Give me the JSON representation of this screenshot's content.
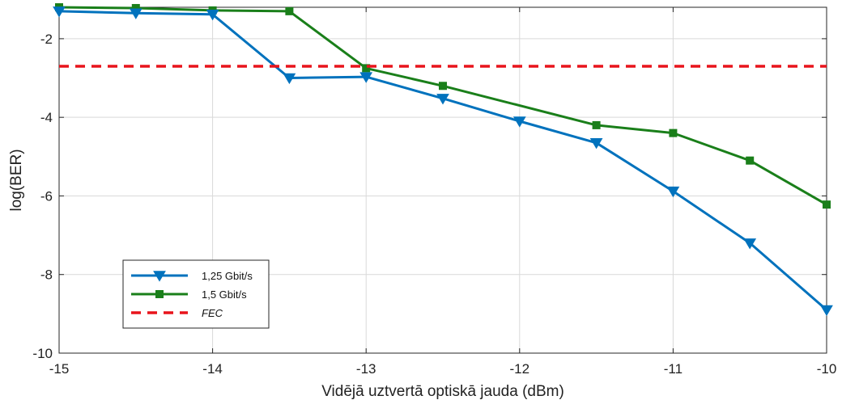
{
  "chart_data": {
    "type": "line",
    "title": "",
    "xlabel": "Vidējā uztvertā optiskā jauda (dBm)",
    "ylabel": "log(BER)",
    "xlim": [
      -15,
      -10
    ],
    "ylim": [
      -10,
      -1.2
    ],
    "x_ticks": [
      -15,
      -14,
      -13,
      -12,
      -11,
      -10
    ],
    "y_ticks": [
      -10,
      -8,
      -6,
      -4,
      -2
    ],
    "x_tick_labels": [
      "-15",
      "-14",
      "-13",
      "-12",
      "-11",
      "-10"
    ],
    "y_tick_labels": [
      "-10",
      "-8",
      "-6",
      "-4",
      "-2"
    ],
    "grid": true,
    "legend_position": "bottom-left",
    "series": [
      {
        "name": "1,25 Gbit/s",
        "color": "#0072bd",
        "marker": "triangle-down",
        "x": [
          -15,
          -14.5,
          -14,
          -13.5,
          -13,
          -12.5,
          -12,
          -11.5,
          -11,
          -10.5,
          -10
        ],
        "y": [
          -1.3,
          -1.35,
          -1.38,
          -3.0,
          -2.97,
          -3.52,
          -4.1,
          -4.65,
          -5.88,
          -7.2,
          -8.9
        ]
      },
      {
        "name": "1,5 Gbit/s",
        "color": "#1a7f1a",
        "marker": "square",
        "x": [
          -15,
          -14.5,
          -14,
          -13.5,
          -13,
          -12.5,
          -12,
          -11.5,
          -11,
          -10.5,
          -10
        ],
        "y": [
          -1.2,
          -1.22,
          -1.28,
          -1.3,
          -2.75,
          -3.2,
          null,
          -4.2,
          -4.4,
          -5.1,
          -6.22
        ]
      },
      {
        "name": "FEC",
        "color": "#e8141c",
        "style": "dashed",
        "x": [
          -15,
          -10
        ],
        "y": [
          -2.7,
          -2.7
        ]
      }
    ]
  }
}
